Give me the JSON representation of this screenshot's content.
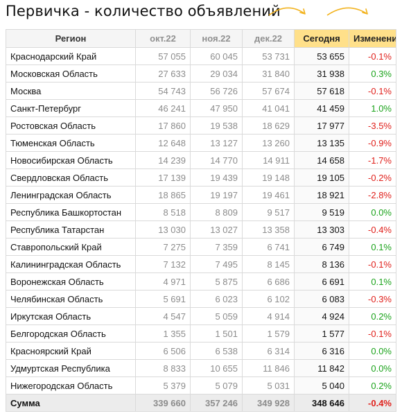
{
  "title": "Первичка - количество объявлений",
  "colors": {
    "negative": "#e0201b",
    "positive": "#1aa31a",
    "highlight": "#ffe08a",
    "arrow": "#f2b21c"
  },
  "headers": {
    "region": "Регион",
    "oct": "окт.22",
    "nov": "ноя.22",
    "dec": "дек.22",
    "today": "Сегодня",
    "change": "Изменение"
  },
  "rows": [
    {
      "region": "Краснодарский Край",
      "oct": "57 055",
      "nov": "60 045",
      "dec": "53 731",
      "today": "53 655",
      "change": "-0.1%"
    },
    {
      "region": "Московская Область",
      "oct": "27 633",
      "nov": "29 034",
      "dec": "31 840",
      "today": "31 938",
      "change": "0.3%"
    },
    {
      "region": "Москва",
      "oct": "54 743",
      "nov": "56 726",
      "dec": "57 674",
      "today": "57 618",
      "change": "-0.1%"
    },
    {
      "region": "Санкт-Петербург",
      "oct": "46 241",
      "nov": "47 950",
      "dec": "41 041",
      "today": "41 459",
      "change": "1.0%"
    },
    {
      "region": "Ростовская Область",
      "oct": "17 860",
      "nov": "19 538",
      "dec": "18 629",
      "today": "17 977",
      "change": "-3.5%"
    },
    {
      "region": "Тюменская Область",
      "oct": "12 648",
      "nov": "13 127",
      "dec": "13 260",
      "today": "13 135",
      "change": "-0.9%"
    },
    {
      "region": "Новосибирская Область",
      "oct": "14 239",
      "nov": "14 770",
      "dec": "14 911",
      "today": "14 658",
      "change": "-1.7%"
    },
    {
      "region": "Свердловская Область",
      "oct": "17 139",
      "nov": "19 439",
      "dec": "19 148",
      "today": "19 105",
      "change": "-0.2%"
    },
    {
      "region": "Ленинградская Область",
      "oct": "18 865",
      "nov": "19 197",
      "dec": "19 461",
      "today": "18 921",
      "change": "-2.8%"
    },
    {
      "region": "Республика Башкортостан",
      "oct": "8 518",
      "nov": "8 809",
      "dec": "9 517",
      "today": "9 519",
      "change": "0.0%"
    },
    {
      "region": "Республика Татарстан",
      "oct": "13 030",
      "nov": "13 027",
      "dec": "13 358",
      "today": "13 303",
      "change": "-0.4%"
    },
    {
      "region": "Ставропольский Край",
      "oct": "7 275",
      "nov": "7 359",
      "dec": "6 741",
      "today": "6 749",
      "change": "0.1%"
    },
    {
      "region": "Калининградская Область",
      "oct": "7 132",
      "nov": "7 495",
      "dec": "8 145",
      "today": "8 136",
      "change": "-0.1%"
    },
    {
      "region": "Воронежская Область",
      "oct": "4 971",
      "nov": "5 875",
      "dec": "6 686",
      "today": "6 691",
      "change": "0.1%"
    },
    {
      "region": "Челябинская Область",
      "oct": "5 691",
      "nov": "6 023",
      "dec": "6 102",
      "today": "6 083",
      "change": "-0.3%"
    },
    {
      "region": "Иркутская Область",
      "oct": "4 547",
      "nov": "5 059",
      "dec": "4 914",
      "today": "4 924",
      "change": "0.2%"
    },
    {
      "region": "Белгородская Область",
      "oct": "1 355",
      "nov": "1 501",
      "dec": "1 579",
      "today": "1 577",
      "change": "-0.1%"
    },
    {
      "region": "Красноярский Край",
      "oct": "6 506",
      "nov": "6 538",
      "dec": "6 314",
      "today": "6 316",
      "change": "0.0%"
    },
    {
      "region": "Удмуртская Республика",
      "oct": "8 833",
      "nov": "10 655",
      "dec": "11 846",
      "today": "11 842",
      "change": "0.0%"
    },
    {
      "region": "Нижегородская Область",
      "oct": "5 379",
      "nov": "5 079",
      "dec": "5 031",
      "today": "5 040",
      "change": "0.2%"
    }
  ],
  "total": {
    "region": "Сумма",
    "oct": "339 660",
    "nov": "357 246",
    "dec": "349 928",
    "today": "348 646",
    "change": "-0.4%"
  }
}
